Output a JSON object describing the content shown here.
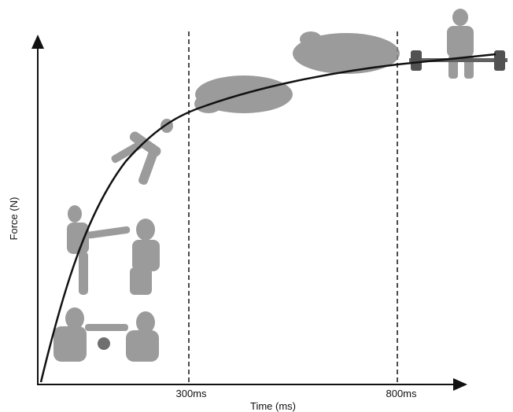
{
  "axes": {
    "y_label": "Force (N)",
    "x_label": "Time (ms)"
  },
  "markers": [
    {
      "label": "300ms"
    },
    {
      "label": "800ms"
    }
  ]
}
